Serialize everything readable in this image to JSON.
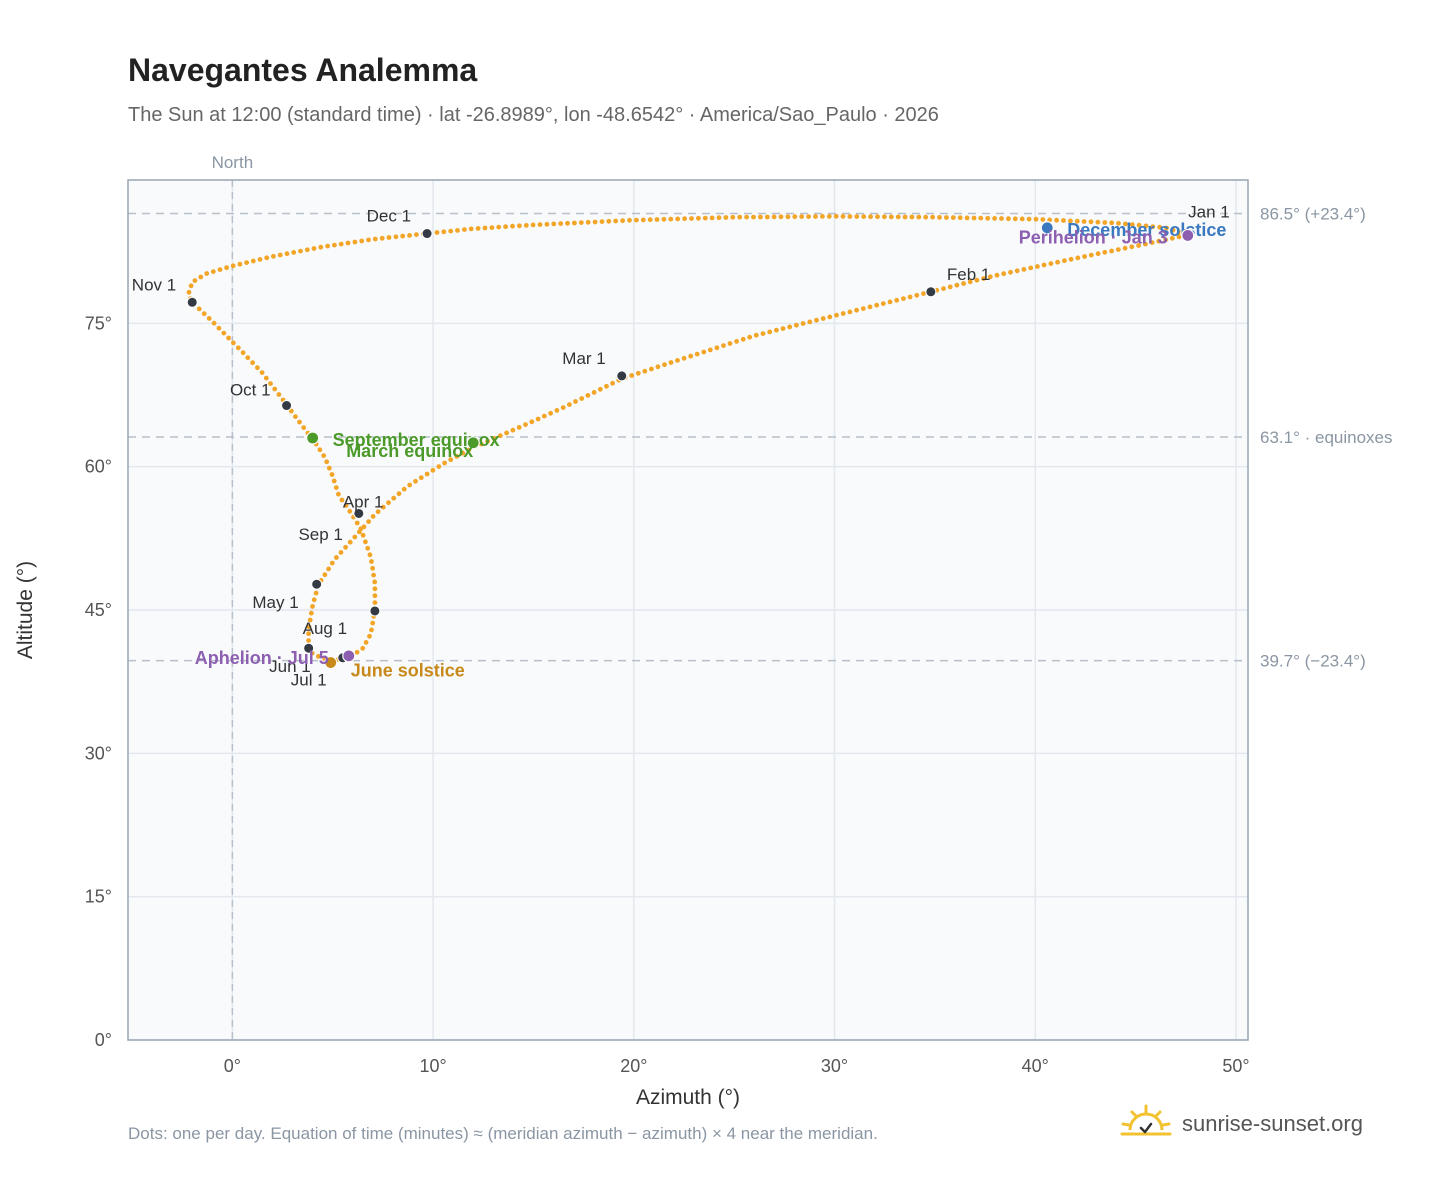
{
  "header": {
    "title": "Navegantes Analemma",
    "subtitle": "The Sun at 12:00 (standard time) · lat -26.8989°, lon -48.6542° · America/Sao_Paulo · 2026"
  },
  "footer": {
    "note": "Dots: one per day. Equation of time (minutes) ≈ (meridian azimuth − azimuth) × 4 near the meridian.",
    "brand": "sunrise-sunset.org",
    "brand_icon": "sun-logo-icon"
  },
  "colors": {
    "path": "#f2a527",
    "month_dot": "#333a44",
    "equinox": "#4c9a2a",
    "june_solstice": "#c8891b",
    "december_solstice": "#3a78c0",
    "apsis": "#8d5fb0",
    "grid": "#e3e8ee",
    "plot_bg": "#f8fafc",
    "frame": "#9aa5b1",
    "reference_line": "#b8c0ca"
  },
  "chart_data": {
    "type": "scatter",
    "title": "Navegantes Analemma",
    "xlabel": "Azimuth (°)",
    "ylabel": "Altitude (°)",
    "xlim": [
      -5.2,
      50.6
    ],
    "ylim": [
      0,
      90
    ],
    "x_ticks": [
      0,
      10,
      20,
      30,
      40,
      50
    ],
    "x_tick_labels": [
      "0°",
      "10°",
      "20°",
      "30°",
      "40°",
      "50°"
    ],
    "y_ticks": [
      0,
      15,
      30,
      45,
      60,
      75
    ],
    "y_tick_labels": [
      "0°",
      "15°",
      "30°",
      "45°",
      "60°",
      "75°"
    ],
    "grid": true,
    "north_line": {
      "x": 0,
      "label": "North"
    },
    "reference_lines": [
      {
        "y": 86.5,
        "label": "86.5° (+23.4°)"
      },
      {
        "y": 63.1,
        "label": "63.1° · equinoxes"
      },
      {
        "y": 39.7,
        "label": "39.7° (−23.4°)"
      }
    ],
    "path_points": [
      [
        47.5,
        84.2
      ],
      [
        47.1,
        84.6
      ],
      [
        46.5,
        85.0
      ],
      [
        44.0,
        85.5
      ],
      [
        40.0,
        85.9
      ],
      [
        35.0,
        86.1
      ],
      [
        30.0,
        86.2
      ],
      [
        25.0,
        86.1
      ],
      [
        20.0,
        85.8
      ],
      [
        15.0,
        85.3
      ],
      [
        12.0,
        84.9
      ],
      [
        9.7,
        84.4
      ],
      [
        7.0,
        83.8
      ],
      [
        4.5,
        83.0
      ],
      [
        2.0,
        82.0
      ],
      [
        0.0,
        81.0
      ],
      [
        -1.3,
        80.2
      ],
      [
        -2.0,
        79.3
      ],
      [
        -2.2,
        78.0
      ],
      [
        -2.0,
        77.2
      ],
      [
        -1.0,
        75.2
      ],
      [
        0.5,
        72.0
      ],
      [
        1.5,
        69.8
      ],
      [
        2.7,
        66.5
      ],
      [
        3.4,
        64.5
      ],
      [
        4.1,
        62.6
      ],
      [
        4.6,
        61.0
      ],
      [
        5.0,
        59.0
      ],
      [
        5.3,
        57.0
      ],
      [
        5.8,
        55.5
      ],
      [
        6.4,
        53.5
      ],
      [
        6.9,
        50.5
      ],
      [
        7.1,
        47.8
      ],
      [
        7.1,
        45.0
      ],
      [
        6.9,
        42.5
      ],
      [
        6.5,
        41.0
      ],
      [
        5.9,
        40.1
      ],
      [
        5.5,
        39.9
      ],
      [
        4.9,
        39.7
      ],
      [
        4.4,
        40.0
      ],
      [
        3.9,
        40.6
      ],
      [
        3.8,
        41.2
      ],
      [
        3.8,
        43.0
      ],
      [
        4.0,
        45.5
      ],
      [
        4.3,
        47.7
      ],
      [
        5.1,
        50.3
      ],
      [
        6.3,
        53.1
      ],
      [
        7.1,
        55.0
      ],
      [
        8.7,
        57.9
      ],
      [
        10.5,
        60.3
      ],
      [
        12.0,
        62.0
      ],
      [
        14.5,
        64.3
      ],
      [
        16.5,
        66.2
      ],
      [
        19.4,
        69.2
      ],
      [
        22.0,
        71.0
      ],
      [
        26.0,
        73.7
      ],
      [
        30.0,
        75.8
      ],
      [
        34.8,
        78.3
      ],
      [
        38.0,
        80.0
      ],
      [
        42.0,
        81.8
      ],
      [
        45.5,
        83.3
      ],
      [
        47.5,
        84.2
      ]
    ],
    "month_markers": [
      {
        "label": "Jan 1",
        "x": 47.5,
        "y": 84.4,
        "anchor": "above-left"
      },
      {
        "label": "Feb 1",
        "x": 34.8,
        "y": 78.3
      },
      {
        "label": "Mar 1",
        "x": 19.4,
        "y": 69.5
      },
      {
        "label": "Apr 1",
        "x": 6.3,
        "y": 55.1
      },
      {
        "label": "May 1",
        "x": 4.2,
        "y": 47.7
      },
      {
        "label": "Jun 1",
        "x": 5.5,
        "y": 40.0
      },
      {
        "label": "Jul 1",
        "x": 4.9,
        "y": 39.6
      },
      {
        "label": "Aug 1",
        "x": 3.8,
        "y": 41.0
      },
      {
        "label": "Sep 1",
        "x": 7.1,
        "y": 44.9
      },
      {
        "label": "Oct 1",
        "x": 2.7,
        "y": 66.4
      },
      {
        "label": "Nov 1",
        "x": -2.0,
        "y": 77.2
      },
      {
        "label": "Dec 1",
        "x": 9.7,
        "y": 84.4
      }
    ],
    "events": [
      {
        "label": "December solstice",
        "x": 40.6,
        "y": 85.0,
        "color_key": "december_solstice"
      },
      {
        "label": "Perihelion · Jan 3",
        "x": 47.6,
        "y": 84.2,
        "color_key": "apsis"
      },
      {
        "label": "September equinox",
        "x": 4.0,
        "y": 63.0,
        "color_key": "equinox"
      },
      {
        "label": "March equinox",
        "x": 12.0,
        "y": 62.5,
        "color_key": "equinox"
      },
      {
        "label": "June solstice",
        "x": 4.9,
        "y": 39.5,
        "color_key": "june_solstice"
      },
      {
        "label": "Aphelion · Jul 5",
        "x": 5.8,
        "y": 40.2,
        "color_key": "apsis"
      }
    ]
  }
}
